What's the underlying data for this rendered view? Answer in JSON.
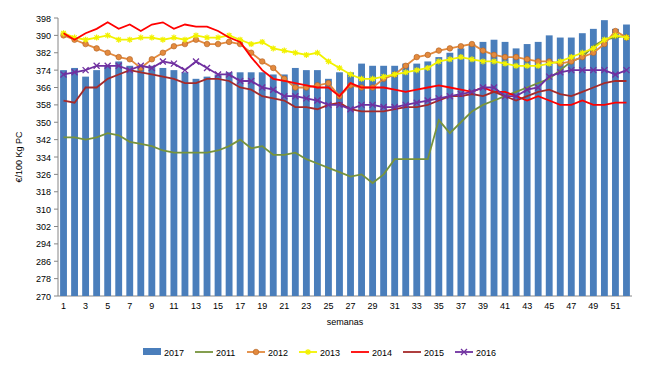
{
  "chart_data": {
    "type": "bar",
    "y_label": "€/100 Kg PC",
    "x_label": "semanas",
    "categories": [
      "1",
      null,
      "3",
      null,
      "5",
      null,
      "7",
      null,
      "9",
      null,
      "11",
      null,
      "13",
      null,
      "15",
      null,
      "17",
      null,
      "19",
      null,
      "21",
      null,
      "23",
      null,
      "25",
      null,
      "27",
      null,
      "29",
      null,
      "31",
      null,
      "33",
      null,
      "35",
      null,
      "37",
      null,
      "39",
      null,
      "41",
      null,
      "43",
      null,
      "45",
      null,
      "47",
      null,
      "49",
      null,
      "51",
      null
    ],
    "ylim": [
      270,
      398
    ],
    "yticks": [
      270,
      278,
      286,
      294,
      302,
      310,
      318,
      326,
      334,
      342,
      350,
      358,
      366,
      374,
      382,
      390,
      398
    ],
    "grid": false,
    "legend": "bottom",
    "series": [
      {
        "name": "2017",
        "type": "bar",
        "color": "#4a7ebb",
        "values": [
          374,
          375,
          371,
          374,
          376,
          378,
          376,
          375,
          376,
          375,
          374,
          373,
          370,
          371,
          372,
          373,
          373,
          373,
          373,
          372,
          372,
          375,
          374,
          374,
          370,
          373,
          373,
          377,
          376,
          376,
          376,
          377,
          377,
          378,
          380,
          382,
          384,
          386,
          387,
          388,
          387,
          384,
          386,
          387,
          390,
          389,
          389,
          391,
          393,
          397,
          393,
          395
        ]
      },
      {
        "name": "2011",
        "type": "line",
        "color": "#77933c",
        "marker": "none",
        "values": [
          343,
          343,
          342,
          343,
          345,
          344,
          341,
          340,
          339,
          337,
          336,
          336,
          336,
          336,
          337,
          339,
          342,
          338,
          339,
          335,
          335,
          336,
          333,
          331,
          329,
          327,
          325,
          326,
          322,
          326,
          333,
          333,
          333,
          333,
          351,
          345,
          350,
          355,
          358,
          360,
          362,
          364,
          366,
          368,
          370,
          374,
          378,
          380,
          385,
          388,
          389,
          390
        ]
      },
      {
        "name": "2012",
        "type": "line",
        "color": "#e38a3e",
        "marker": "circle",
        "values": [
          390,
          388,
          386,
          384,
          382,
          380,
          379,
          375,
          379,
          382,
          385,
          386,
          388,
          386,
          386,
          387,
          386,
          382,
          378,
          375,
          370,
          366,
          366,
          367,
          368,
          362,
          367,
          366,
          366,
          370,
          372,
          376,
          380,
          381,
          383,
          384,
          385,
          386,
          383,
          381,
          380,
          380,
          379,
          378,
          378,
          377,
          378,
          380,
          382,
          386,
          392,
          389
        ]
      },
      {
        "name": "2013",
        "type": "line",
        "color": "#f2f200",
        "marker": "star",
        "values": [
          391,
          389,
          388,
          389,
          390,
          388,
          388,
          389,
          389,
          388,
          389,
          388,
          390,
          389,
          389,
          390,
          388,
          386,
          387,
          384,
          383,
          382,
          381,
          382,
          378,
          375,
          372,
          370,
          370,
          371,
          372,
          373,
          374,
          375,
          378,
          379,
          380,
          379,
          378,
          378,
          377,
          376,
          376,
          376,
          377,
          378,
          380,
          382,
          384,
          388,
          390,
          389
        ]
      },
      {
        "name": "2014",
        "type": "line",
        "color": "#ff0000",
        "marker": "none",
        "values": [
          391,
          388,
          391,
          393,
          396,
          393,
          395,
          392,
          395,
          396,
          393,
          395,
          394,
          394,
          392,
          389,
          387,
          380,
          374,
          370,
          369,
          368,
          367,
          366,
          366,
          362,
          368,
          366,
          366,
          366,
          365,
          364,
          365,
          366,
          367,
          366,
          365,
          364,
          366,
          364,
          364,
          362,
          360,
          362,
          360,
          358,
          358,
          360,
          358,
          358,
          359,
          359
        ]
      },
      {
        "name": "2015",
        "type": "line",
        "color": "#a52a2a",
        "marker": "none",
        "values": [
          360,
          359,
          366,
          366,
          370,
          372,
          374,
          373,
          372,
          371,
          370,
          368,
          368,
          370,
          370,
          369,
          366,
          365,
          362,
          361,
          360,
          357,
          357,
          356,
          358,
          359,
          356,
          355,
          355,
          355,
          356,
          357,
          357,
          358,
          360,
          362,
          362,
          363,
          362,
          364,
          362,
          360,
          362,
          364,
          365,
          363,
          362,
          364,
          366,
          368,
          369,
          369
        ]
      },
      {
        "name": "2016",
        "type": "line",
        "color": "#7030a0",
        "marker": "x",
        "values": [
          372,
          373,
          374,
          376,
          376,
          376,
          374,
          376,
          375,
          378,
          377,
          374,
          378,
          375,
          372,
          372,
          369,
          369,
          366,
          365,
          362,
          362,
          361,
          360,
          358,
          358,
          356,
          358,
          358,
          357,
          357,
          358,
          359,
          360,
          361,
          362,
          363,
          364,
          366,
          366,
          362,
          362,
          365,
          366,
          371,
          373,
          374,
          374,
          374,
          374,
          372,
          374
        ]
      }
    ]
  }
}
